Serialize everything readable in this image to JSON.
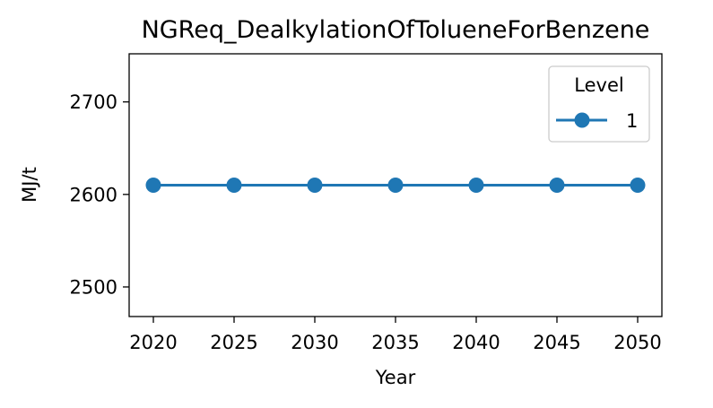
{
  "chart_data": {
    "type": "line",
    "title": "NGReq_DealkylationOfTolueneForBenzene",
    "xlabel": "Year",
    "ylabel": "MJ/t",
    "x": [
      2020,
      2025,
      2030,
      2035,
      2040,
      2045,
      2050
    ],
    "xlim": [
      2018.5,
      2051.5
    ],
    "ylim": [
      2468,
      2752
    ],
    "xticks": [
      2020,
      2025,
      2030,
      2035,
      2040,
      2045,
      2050
    ],
    "yticks": [
      2500,
      2600,
      2700
    ],
    "series": [
      {
        "name": "1",
        "color": "#1f77b4",
        "marker": "circle",
        "values": [
          2610,
          2610,
          2610,
          2610,
          2610,
          2610,
          2610
        ]
      }
    ],
    "legend": {
      "title": "Level",
      "position": "top-right"
    },
    "grid": false
  }
}
